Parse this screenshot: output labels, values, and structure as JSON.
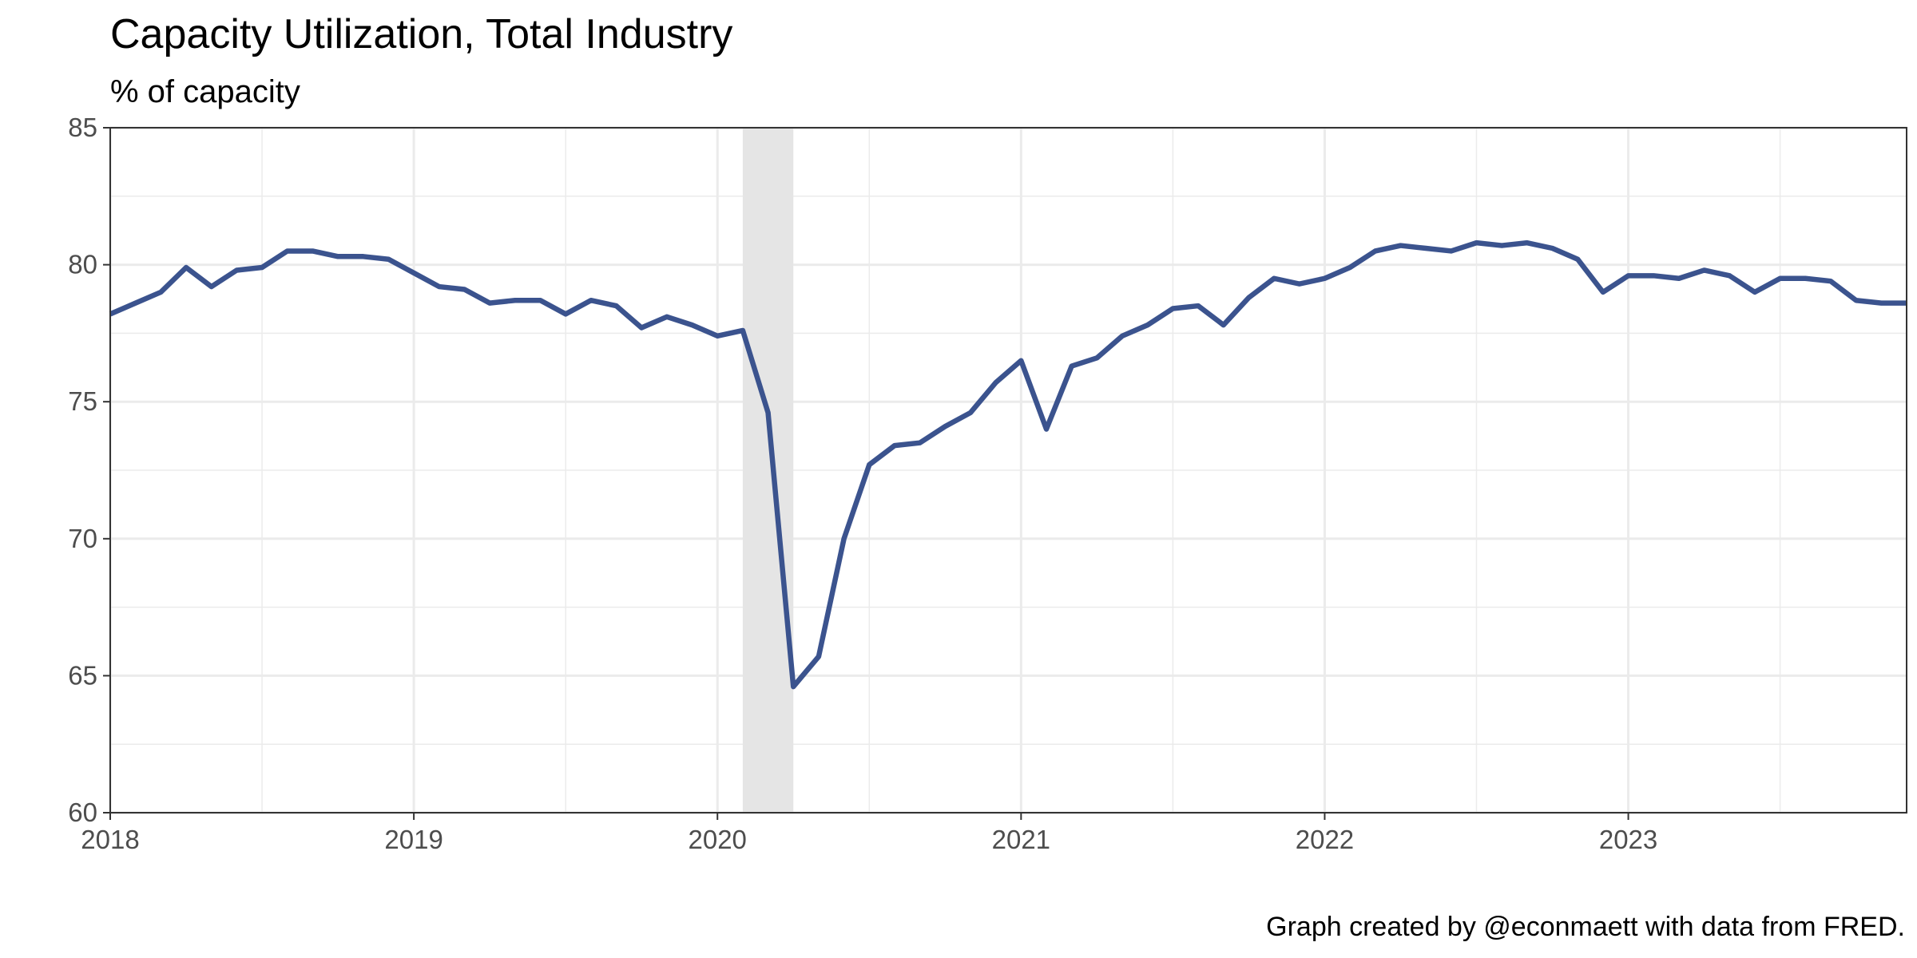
{
  "chart_data": {
    "type": "line",
    "title": "Capacity Utilization, Total Industry",
    "subtitle": "% of capacity",
    "caption": "Graph created by @econmaett with data from FRED.",
    "xlabel": "",
    "ylabel": "",
    "x_tick_labels": [
      "2018",
      "2019",
      "2020",
      "2021",
      "2022",
      "2023"
    ],
    "y_tick_labels": [
      "60",
      "65",
      "70",
      "75",
      "80",
      "85"
    ],
    "y_ticks": [
      60,
      65,
      70,
      75,
      80,
      85
    ],
    "ylim": [
      60,
      85
    ],
    "xlim": [
      "2018-01",
      "2023-12"
    ],
    "grid": true,
    "recession_shading": {
      "start": "2020-02",
      "end": "2020-04",
      "color": "#e5e5e5"
    },
    "colors": {
      "line": "#354d8a",
      "grid": "#ebebeb",
      "axis": "#333333"
    },
    "series": [
      {
        "x": [
          "2018-01",
          "2018-02",
          "2018-03",
          "2018-04",
          "2018-05",
          "2018-06",
          "2018-07",
          "2018-08",
          "2018-09",
          "2018-10",
          "2018-11",
          "2018-12",
          "2019-01",
          "2019-02",
          "2019-03",
          "2019-04",
          "2019-05",
          "2019-06",
          "2019-07",
          "2019-08",
          "2019-09",
          "2019-10",
          "2019-11",
          "2019-12",
          "2020-01",
          "2020-02",
          "2020-03",
          "2020-04",
          "2020-05",
          "2020-06",
          "2020-07",
          "2020-08",
          "2020-09",
          "2020-10",
          "2020-11",
          "2020-12",
          "2021-01",
          "2021-02",
          "2021-03",
          "2021-04",
          "2021-05",
          "2021-06",
          "2021-07",
          "2021-08",
          "2021-09",
          "2021-10",
          "2021-11",
          "2021-12",
          "2022-01",
          "2022-02",
          "2022-03",
          "2022-04",
          "2022-05",
          "2022-06",
          "2022-07",
          "2022-08",
          "2022-09",
          "2022-10",
          "2022-11",
          "2022-12",
          "2023-01",
          "2023-02",
          "2023-03",
          "2023-04",
          "2023-05",
          "2023-06",
          "2023-07",
          "2023-08",
          "2023-09",
          "2023-10",
          "2023-11",
          "2023-12"
        ],
        "values": [
          78.2,
          78.6,
          79.0,
          79.9,
          79.2,
          79.8,
          79.9,
          80.5,
          80.5,
          80.3,
          80.3,
          80.2,
          79.7,
          79.2,
          79.1,
          78.6,
          78.7,
          78.7,
          78.2,
          78.7,
          78.5,
          77.7,
          78.1,
          77.8,
          77.4,
          77.6,
          74.6,
          64.6,
          65.7,
          70.0,
          72.7,
          73.4,
          73.5,
          74.1,
          74.6,
          75.7,
          76.5,
          74.0,
          76.3,
          76.6,
          77.4,
          77.8,
          78.4,
          78.5,
          77.8,
          78.8,
          79.5,
          79.3,
          79.5,
          79.9,
          80.5,
          80.7,
          80.6,
          80.5,
          80.8,
          80.7,
          80.8,
          80.6,
          80.2,
          79.0,
          79.6,
          79.6,
          79.5,
          79.8,
          79.6,
          79.0,
          79.5,
          79.5,
          79.4,
          78.7,
          78.6,
          78.6
        ]
      }
    ]
  }
}
